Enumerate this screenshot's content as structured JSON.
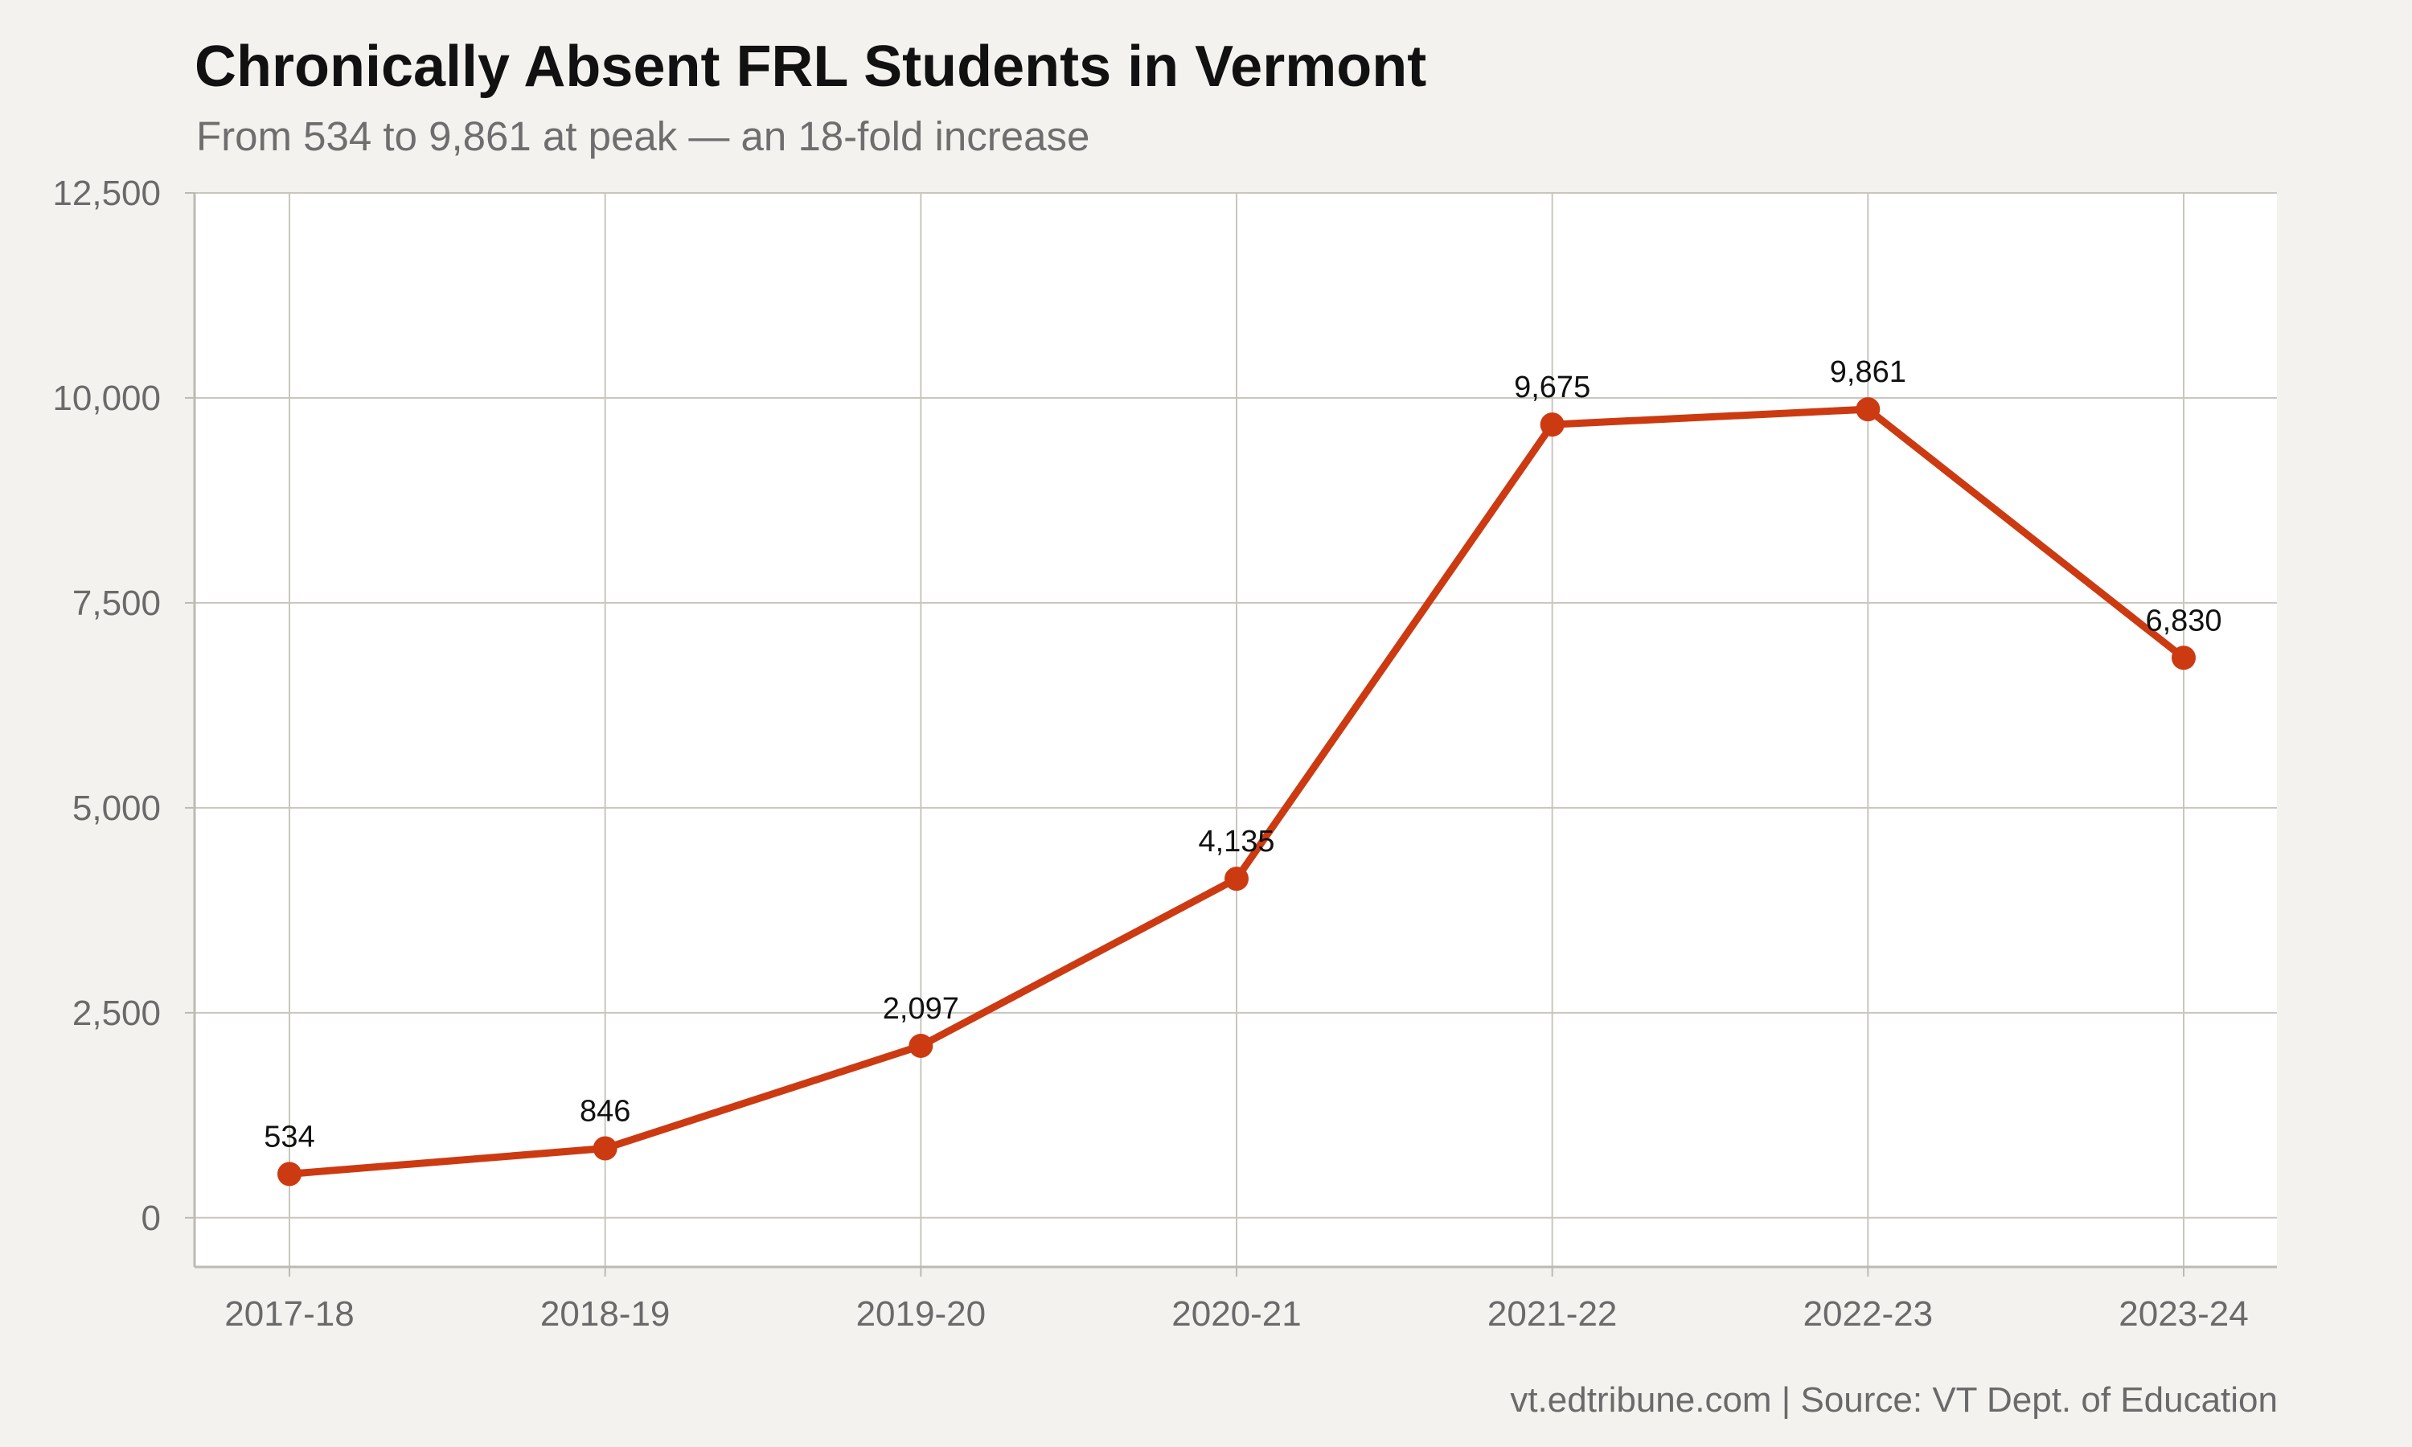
{
  "chart_data": {
    "type": "line",
    "title": "Chronically Absent FRL Students in Vermont",
    "subtitle": "From 534 to 9,861 at peak — an 18-fold increase",
    "caption": "vt.edtribune.com | Source: VT Dept. of Education",
    "xlabel": "",
    "ylabel": "",
    "categories": [
      "2017-18",
      "2018-19",
      "2019-20",
      "2020-21",
      "2021-22",
      "2022-23",
      "2023-24"
    ],
    "values": [
      534,
      846,
      2097,
      4135,
      9675,
      9861,
      6830
    ],
    "data_labels": [
      "534",
      "846",
      "2,097",
      "4,135",
      "9,675",
      "9,861",
      "6,830"
    ],
    "ylim": [
      -600,
      12500
    ],
    "yticks": [
      0,
      2500,
      5000,
      7500,
      10000,
      12500
    ],
    "ytick_labels": [
      "0",
      "2,500",
      "5,000",
      "7,500",
      "10,000",
      "12,500"
    ],
    "grid": true,
    "legend": "none",
    "line_color": "#cc3a12",
    "panel_color": "#ffffff",
    "background_color": "#f4f2ee",
    "grid_color": "#c9c6c0"
  }
}
